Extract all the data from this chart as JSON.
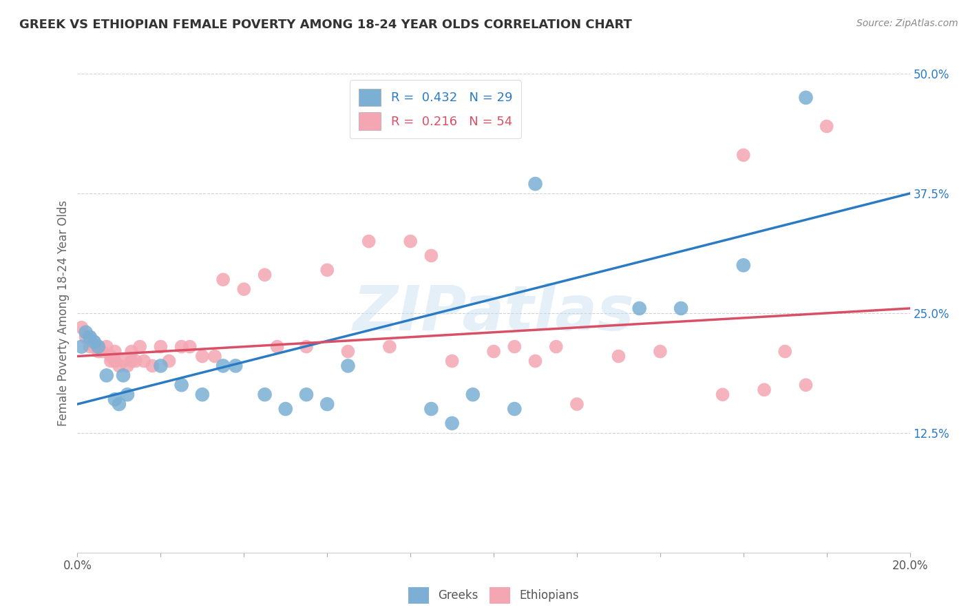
{
  "title": "GREEK VS ETHIOPIAN FEMALE POVERTY AMONG 18-24 YEAR OLDS CORRELATION CHART",
  "source": "Source: ZipAtlas.com",
  "ylabel": "Female Poverty Among 18-24 Year Olds",
  "legend_label_greeks": "Greeks",
  "legend_label_ethiopians": "Ethiopians",
  "greek_color": "#7BAFD4",
  "ethiopian_color": "#F4A7B2",
  "greek_line_color": "#2B7BC4",
  "ethiopian_line_color": "#D94F66",
  "watermark": "ZIPatlas",
  "background_color": "#FFFFFF",
  "xlim": [
    0.0,
    0.2
  ],
  "ylim": [
    0.0,
    0.5
  ],
  "greek_R": "0.432",
  "greek_N": "29",
  "ethiopian_R": "0.216",
  "ethiopian_N": "54",
  "greeks_x": [
    0.001,
    0.002,
    0.003,
    0.004,
    0.005,
    0.007,
    0.009,
    0.01,
    0.011,
    0.012,
    0.02,
    0.025,
    0.03,
    0.035,
    0.038,
    0.045,
    0.05,
    0.055,
    0.06,
    0.065,
    0.085,
    0.09,
    0.095,
    0.105,
    0.11,
    0.135,
    0.145,
    0.16,
    0.175
  ],
  "greeks_y": [
    0.215,
    0.23,
    0.225,
    0.22,
    0.215,
    0.185,
    0.16,
    0.155,
    0.185,
    0.165,
    0.195,
    0.175,
    0.165,
    0.195,
    0.195,
    0.165,
    0.15,
    0.165,
    0.155,
    0.195,
    0.15,
    0.135,
    0.165,
    0.15,
    0.385,
    0.255,
    0.255,
    0.3,
    0.475
  ],
  "ethiopians_x": [
    0.001,
    0.002,
    0.003,
    0.003,
    0.004,
    0.004,
    0.005,
    0.005,
    0.006,
    0.007,
    0.008,
    0.008,
    0.009,
    0.009,
    0.01,
    0.011,
    0.012,
    0.013,
    0.013,
    0.014,
    0.015,
    0.016,
    0.018,
    0.02,
    0.022,
    0.025,
    0.027,
    0.03,
    0.033,
    0.035,
    0.04,
    0.045,
    0.048,
    0.055,
    0.06,
    0.065,
    0.07,
    0.075,
    0.08,
    0.085,
    0.09,
    0.1,
    0.105,
    0.11,
    0.115,
    0.12,
    0.13,
    0.14,
    0.155,
    0.16,
    0.165,
    0.17,
    0.175,
    0.18
  ],
  "ethiopians_y": [
    0.235,
    0.225,
    0.225,
    0.215,
    0.215,
    0.22,
    0.215,
    0.21,
    0.21,
    0.215,
    0.205,
    0.2,
    0.21,
    0.2,
    0.195,
    0.2,
    0.195,
    0.21,
    0.2,
    0.2,
    0.215,
    0.2,
    0.195,
    0.215,
    0.2,
    0.215,
    0.215,
    0.205,
    0.205,
    0.285,
    0.275,
    0.29,
    0.215,
    0.215,
    0.295,
    0.21,
    0.325,
    0.215,
    0.325,
    0.31,
    0.2,
    0.21,
    0.215,
    0.2,
    0.215,
    0.155,
    0.205,
    0.21,
    0.165,
    0.415,
    0.17,
    0.21,
    0.175,
    0.445
  ]
}
